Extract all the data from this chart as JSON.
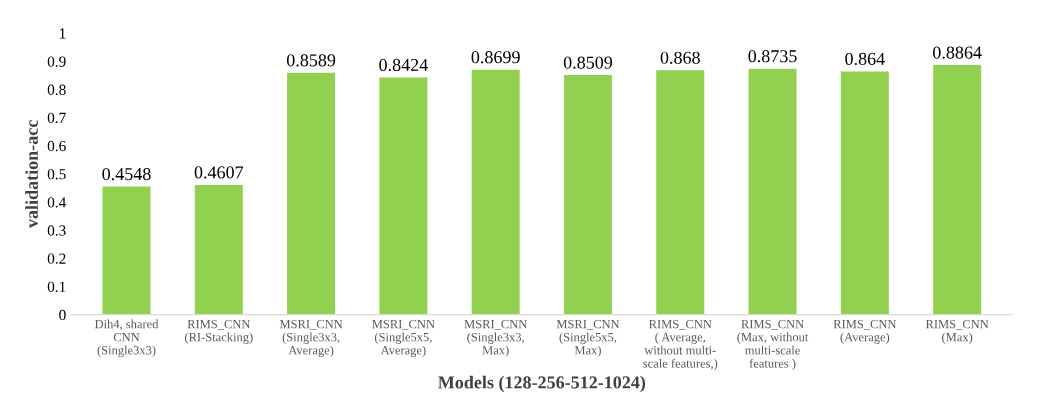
{
  "chart_data": {
    "type": "bar",
    "xlabel": "Models (128-256-512-1024)",
    "ylabel": "validation-acc",
    "categories": [
      "Dih4, shared\nCNN\n(Single3x3)",
      "RIMS_CNN\n(RI-Stacking)",
      "MSRI_CNN\n(Single3x3,\nAverage)",
      "MSRI_CNN\n(Single5x5,\nAverage)",
      "MSRI_CNN\n(Single3x3,\nMax)",
      "MSRI_CNN\n(Single5x5,\nMax)",
      "RIMS_CNN\n( Average,\nwithout multi-\nscale features,)",
      "RIMS_CNN\n(Max, without\nmulti-scale\nfeatures )",
      "RIMS_CNN\n(Average)",
      "RIMS_CNN\n(Max)"
    ],
    "values": [
      0.4548,
      0.4607,
      0.8589,
      0.8424,
      0.8699,
      0.8509,
      0.868,
      0.8735,
      0.864,
      0.8864
    ],
    "color": "#92d050",
    "ylim": [
      0,
      1
    ],
    "yticks": [
      0,
      0.1,
      0.2,
      0.3,
      0.4,
      0.5,
      0.6,
      0.7,
      0.8,
      0.9,
      1
    ],
    "data_labels": true,
    "grid": false
  }
}
